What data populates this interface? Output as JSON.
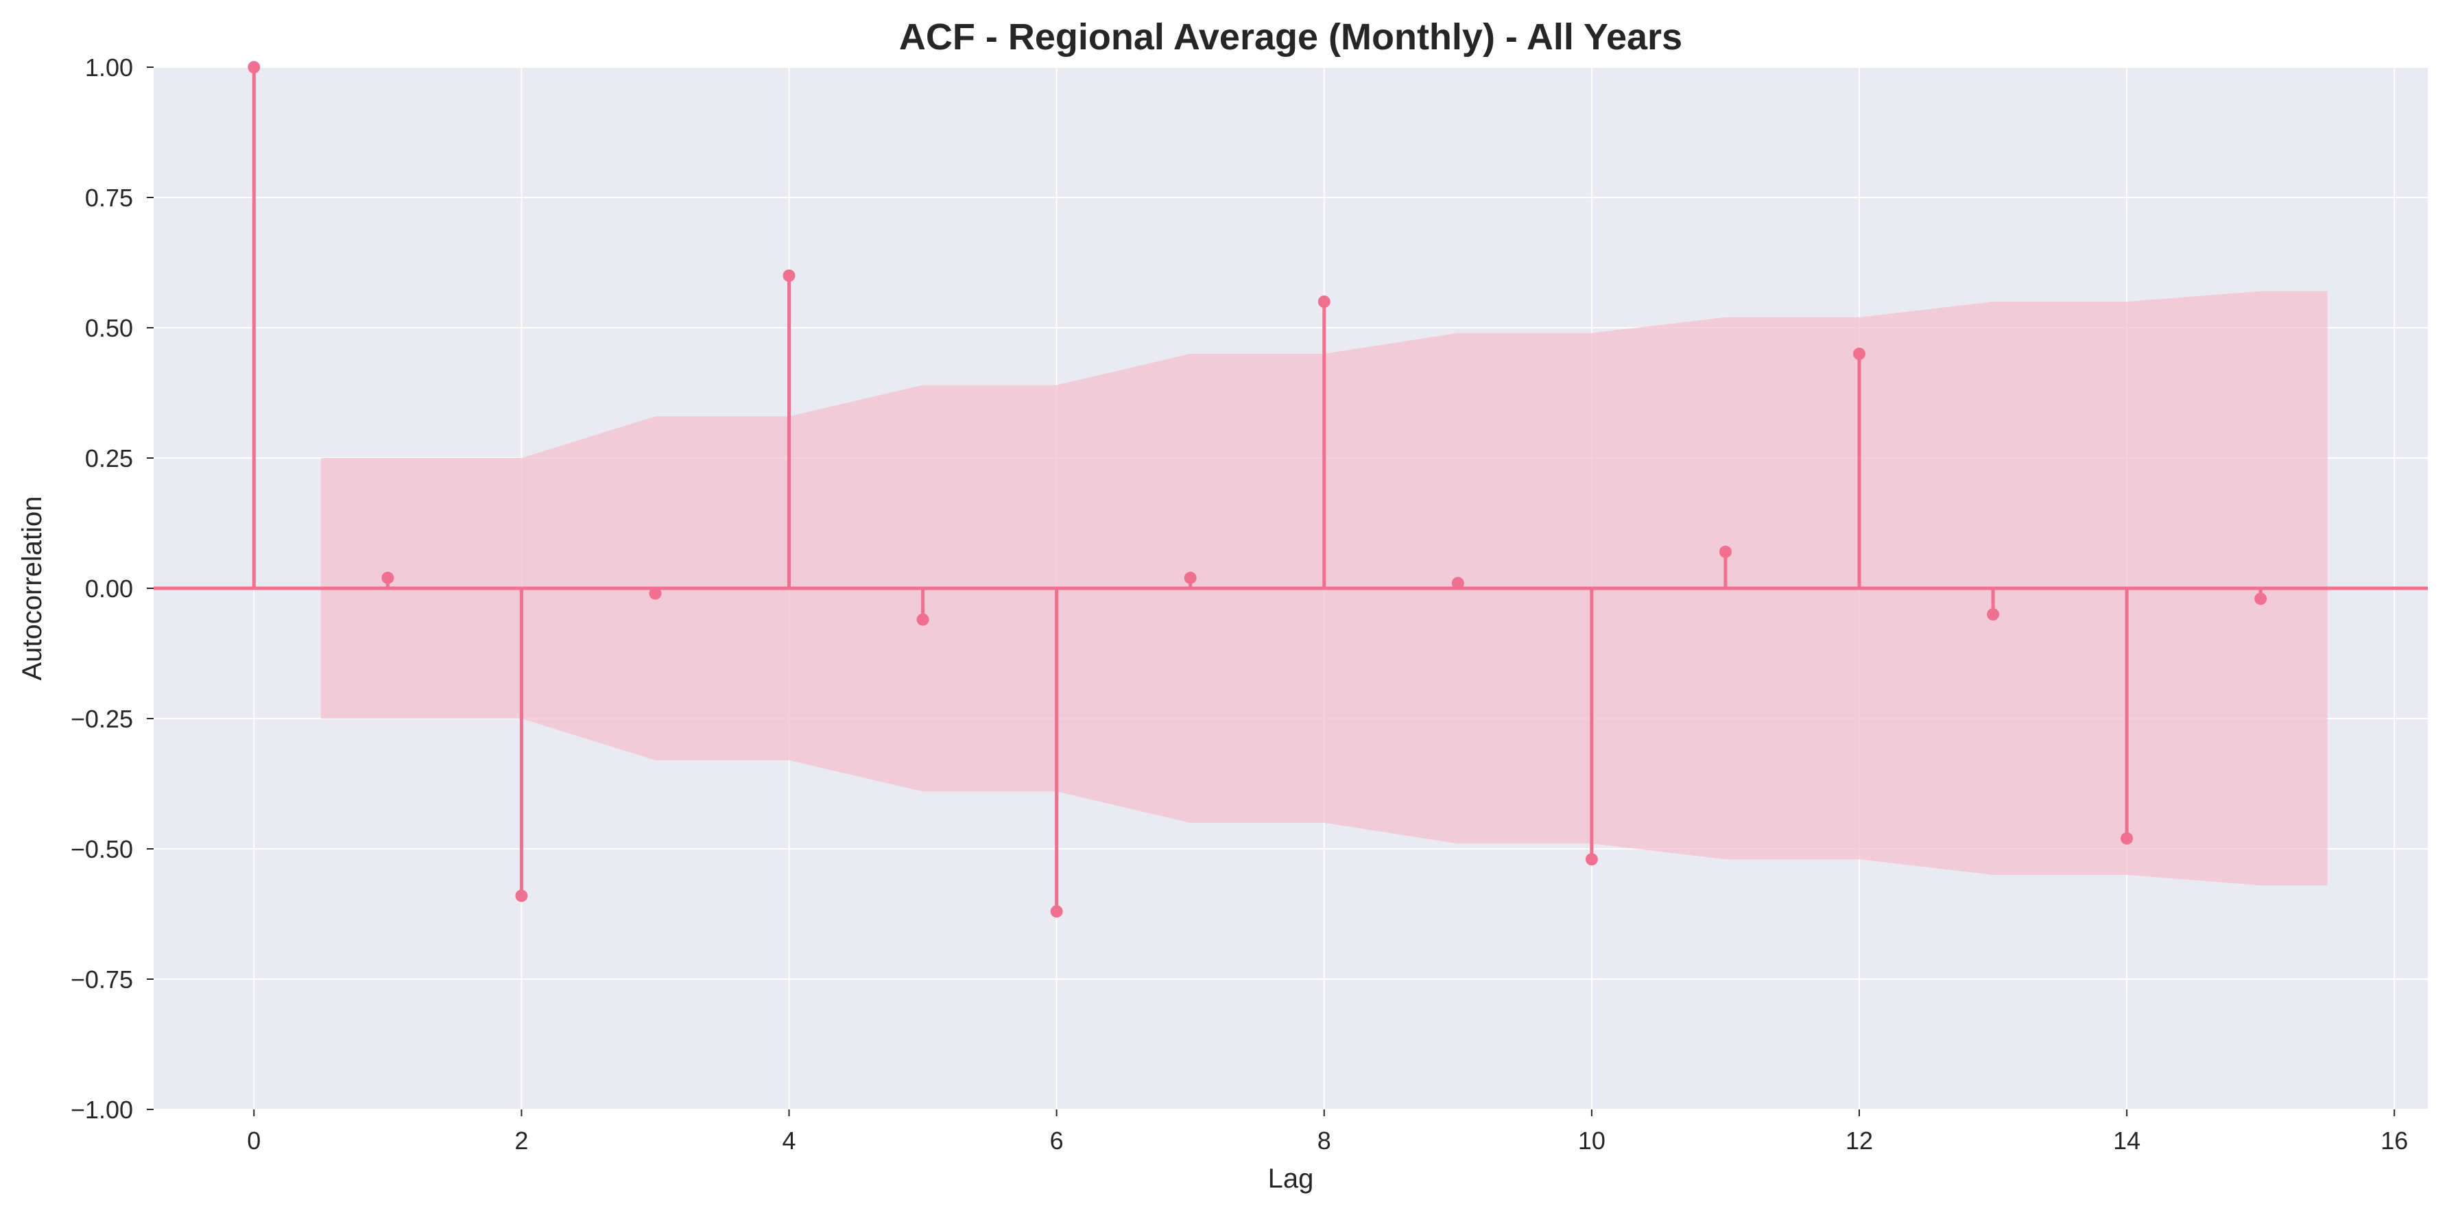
{
  "colors": {
    "background": "#eaeaf2",
    "grid": "#ffffff",
    "stem": "#f07090",
    "band": "#f4c0cf",
    "text": "#262626"
  },
  "chart_data": {
    "type": "scatter",
    "subtype": "acf-stem",
    "title": "ACF - Regional Average (Monthly) - All Years",
    "xlabel": "Lag",
    "ylabel": "Autocorrelation",
    "xlim": [
      -0.75,
      16.25
    ],
    "ylim": [
      -1.0,
      1.0
    ],
    "grid": true,
    "xticks": [
      0,
      2,
      4,
      6,
      8,
      10,
      12,
      14,
      16
    ],
    "xtick_labels": [
      "0",
      "2",
      "4",
      "6",
      "8",
      "10",
      "12",
      "14",
      "16"
    ],
    "yticks": [
      1.0,
      0.75,
      0.5,
      0.25,
      0.0,
      -0.25,
      -0.5,
      -0.75,
      -1.0
    ],
    "ytick_labels": [
      "1.00",
      "0.75",
      "0.50",
      "0.25",
      "0.00",
      "−0.25",
      "−0.50",
      "−0.75",
      "−1.00"
    ],
    "series": [
      {
        "lags": [
          0,
          1,
          2,
          3,
          4,
          5,
          6,
          7,
          8,
          9,
          10,
          11,
          12,
          13,
          14,
          15
        ],
        "values": [
          1.0,
          0.02,
          -0.59,
          -0.01,
          0.6,
          -0.06,
          -0.62,
          0.02,
          0.55,
          0.01,
          -0.52,
          0.07,
          0.45,
          -0.05,
          -0.48,
          -0.02
        ]
      }
    ],
    "confidence_band": {
      "lags": [
        1,
        2,
        3,
        4,
        5,
        6,
        7,
        8,
        9,
        10,
        11,
        12,
        13,
        14,
        15
      ],
      "upper": [
        0.25,
        0.25,
        0.33,
        0.33,
        0.39,
        0.39,
        0.45,
        0.45,
        0.49,
        0.49,
        0.52,
        0.52,
        0.55,
        0.55,
        0.57
      ]
    }
  }
}
